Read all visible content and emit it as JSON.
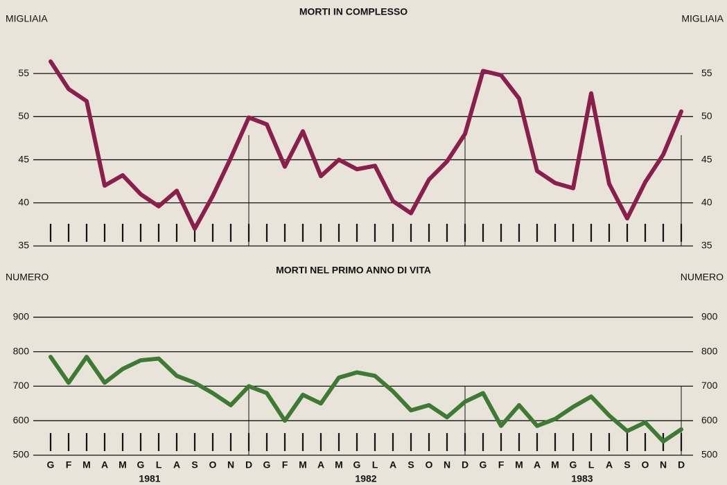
{
  "chart_data": [
    {
      "type": "line",
      "title": "MORTI IN COMPLESSO",
      "unit": "MIGLIAIA",
      "series": [
        {
          "color": "#8a1f4c",
          "values": [
            56.4,
            53.2,
            51.8,
            42.0,
            43.2,
            41.0,
            39.6,
            41.4,
            37.0,
            40.8,
            45.2,
            49.9,
            49.1,
            44.2,
            48.3,
            43.1,
            45.0,
            43.9,
            44.3,
            40.2,
            38.8,
            42.7,
            44.8,
            48.0,
            55.3,
            54.8,
            52.1,
            43.7,
            42.3,
            41.7,
            52.7,
            42.2,
            38.2,
            42.4,
            45.6,
            50.6
          ]
        }
      ],
      "ylim": [
        35,
        57.5
      ],
      "yticks": [
        35,
        40,
        45,
        50,
        55
      ],
      "grid": true
    },
    {
      "type": "line",
      "title": "MORTI NEL PRIMO ANNO DI VITA",
      "unit": "NUMERO",
      "categories": [
        "G",
        "F",
        "M",
        "A",
        "M",
        "G",
        "L",
        "A",
        "S",
        "O",
        "N",
        "D",
        "G",
        "F",
        "M",
        "A",
        "M",
        "G",
        "L",
        "A",
        "S",
        "O",
        "N",
        "D",
        "G",
        "F",
        "M",
        "A",
        "M",
        "G",
        "L",
        "A",
        "S",
        "O",
        "N",
        "D"
      ],
      "years": [
        "1981",
        "1982",
        "1983"
      ],
      "series": [
        {
          "color": "#3f7a34",
          "values": [
            785,
            710,
            785,
            710,
            750,
            775,
            780,
            730,
            710,
            680,
            645,
            700,
            680,
            600,
            675,
            650,
            725,
            740,
            730,
            685,
            630,
            645,
            610,
            655,
            680,
            585,
            645,
            585,
            605,
            640,
            670,
            615,
            570,
            595,
            540,
            575
          ]
        }
      ],
      "ylim": [
        500,
        1000
      ],
      "yticks": [
        500,
        600,
        700,
        800,
        900
      ],
      "grid": true
    }
  ]
}
